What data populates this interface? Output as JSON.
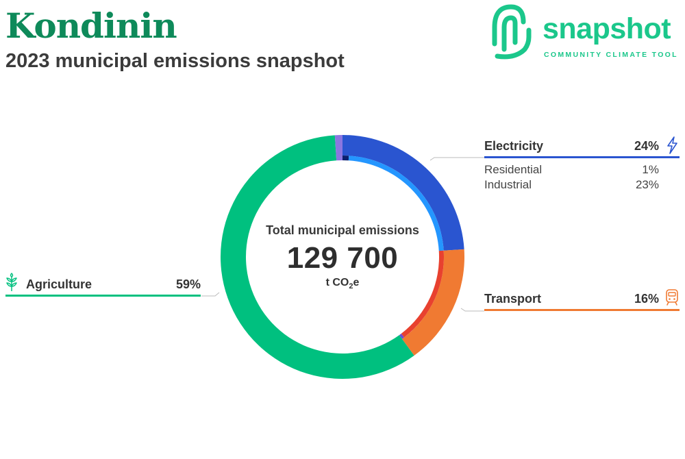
{
  "header": {
    "title": "Kondinin",
    "subtitle": "2023 municipal emissions snapshot"
  },
  "logo": {
    "word": "snapshot",
    "tagline": "COMMUNITY CLIMATE TOOL",
    "color": "#1bc78b"
  },
  "center": {
    "caption": "Total municipal emissions",
    "total": "129 700",
    "unit_prefix": "t CO",
    "unit_sub": "2",
    "unit_suffix": "e"
  },
  "legend": {
    "electricity": {
      "label": "Electricity",
      "pct": "24%",
      "icon": "lightning-icon",
      "color": "#2a55d0",
      "subitems": [
        {
          "label": "Residential",
          "pct": "1%"
        },
        {
          "label": "Industrial",
          "pct": "23%"
        }
      ]
    },
    "transport": {
      "label": "Transport",
      "pct": "16%",
      "icon": "train-icon",
      "color": "#f07a32"
    },
    "agriculture": {
      "label": "Agriculture",
      "pct": "59%",
      "icon": "wheat-icon",
      "color": "#00c07f"
    }
  },
  "chart_data": {
    "type": "pie",
    "title": "Total municipal emissions",
    "total": 129700,
    "unit": "t CO2e",
    "series": [
      {
        "name": "Electricity",
        "value": 24,
        "color": "#2a55d0",
        "subcategories": [
          {
            "name": "Residential",
            "value": 1,
            "color": "#0b1f6e"
          },
          {
            "name": "Industrial",
            "value": 23,
            "color": "#2496ff"
          }
        ]
      },
      {
        "name": "Transport",
        "value": 16,
        "color": "#f07a32",
        "subcategories": [
          {
            "value": 15.6,
            "color": "#e8412f"
          },
          {
            "value": 0.4,
            "color": "#6a4fcf"
          }
        ]
      },
      {
        "name": "Agriculture",
        "value": 59,
        "color": "#00c07f"
      },
      {
        "value": 1,
        "color": "#8b76e0"
      }
    ]
  }
}
